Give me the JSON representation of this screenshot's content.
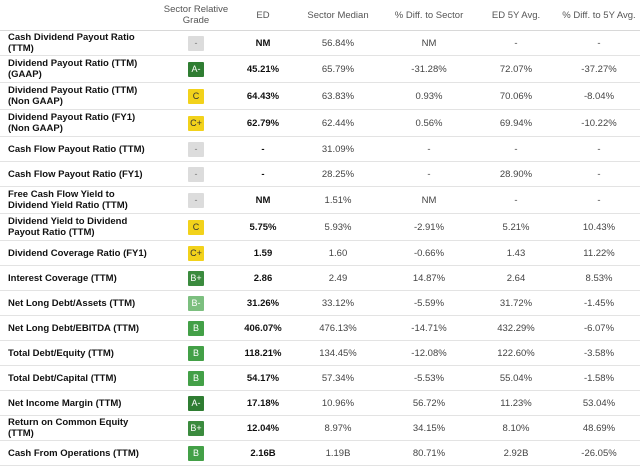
{
  "headers": [
    "",
    "Sector Relative Grade",
    "ED",
    "Sector Median",
    "% Diff. to Sector",
    "ED 5Y Avg.",
    "% Diff. to 5Y Avg."
  ],
  "rows": [
    {
      "metric": "Cash Dividend Payout Ratio (TTM)",
      "grade": "-",
      "ed": "NM",
      "median": "56.84%",
      "diff_sector": "NM",
      "avg5y": "-",
      "diff_5y": "-"
    },
    {
      "metric": "Dividend Payout Ratio (TTM) (GAAP)",
      "grade": "A-",
      "ed": "45.21%",
      "median": "65.79%",
      "diff_sector": "-31.28%",
      "avg5y": "72.07%",
      "diff_5y": "-37.27%"
    },
    {
      "metric": "Dividend Payout Ratio (TTM) (Non GAAP)",
      "grade": "C",
      "ed": "64.43%",
      "median": "63.83%",
      "diff_sector": "0.93%",
      "avg5y": "70.06%",
      "diff_5y": "-8.04%"
    },
    {
      "metric": "Dividend Payout Ratio (FY1) (Non GAAP)",
      "grade": "C+",
      "ed": "62.79%",
      "median": "62.44%",
      "diff_sector": "0.56%",
      "avg5y": "69.94%",
      "diff_5y": "-10.22%"
    },
    {
      "metric": "Cash Flow Payout Ratio (TTM)",
      "grade": "-",
      "ed": "-",
      "median": "31.09%",
      "diff_sector": "-",
      "avg5y": "-",
      "diff_5y": "-"
    },
    {
      "metric": "Cash Flow Payout Ratio (FY1)",
      "grade": "-",
      "ed": "-",
      "median": "28.25%",
      "diff_sector": "-",
      "avg5y": "28.90%",
      "diff_5y": "-"
    },
    {
      "metric": "Free Cash Flow Yield to Dividend Yield Ratio (TTM)",
      "grade": "-",
      "ed": "NM",
      "median": "1.51%",
      "diff_sector": "NM",
      "avg5y": "-",
      "diff_5y": "-"
    },
    {
      "metric": "Dividend Yield to Dividend Payout Ratio (TTM)",
      "grade": "C",
      "ed": "5.75%",
      "median": "5.93%",
      "diff_sector": "-2.91%",
      "avg5y": "5.21%",
      "diff_5y": "10.43%"
    },
    {
      "metric": "Dividend Coverage Ratio (FY1)",
      "grade": "C+",
      "ed": "1.59",
      "median": "1.60",
      "diff_sector": "-0.66%",
      "avg5y": "1.43",
      "diff_5y": "11.22%"
    },
    {
      "metric": "Interest Coverage (TTM)",
      "grade": "B+",
      "ed": "2.86",
      "median": "2.49",
      "diff_sector": "14.87%",
      "avg5y": "2.64",
      "diff_5y": "8.53%"
    },
    {
      "metric": "Net Long Debt/Assets (TTM)",
      "grade": "B-",
      "ed": "31.26%",
      "median": "33.12%",
      "diff_sector": "-5.59%",
      "avg5y": "31.72%",
      "diff_5y": "-1.45%"
    },
    {
      "metric": "Net Long Debt/EBITDA (TTM)",
      "grade": "B",
      "ed": "406.07%",
      "median": "476.13%",
      "diff_sector": "-14.71%",
      "avg5y": "432.29%",
      "diff_5y": "-6.07%"
    },
    {
      "metric": "Total Debt/Equity (TTM)",
      "grade": "B",
      "ed": "118.21%",
      "median": "134.45%",
      "diff_sector": "-12.08%",
      "avg5y": "122.60%",
      "diff_5y": "-3.58%"
    },
    {
      "metric": "Total Debt/Capital (TTM)",
      "grade": "B",
      "ed": "54.17%",
      "median": "57.34%",
      "diff_sector": "-5.53%",
      "avg5y": "55.04%",
      "diff_5y": "-1.58%"
    },
    {
      "metric": "Net Income Margin (TTM)",
      "grade": "A-",
      "ed": "17.18%",
      "median": "10.96%",
      "diff_sector": "56.72%",
      "avg5y": "11.23%",
      "diff_5y": "53.04%"
    },
    {
      "metric": "Return on Common Equity (TTM)",
      "grade": "B+",
      "ed": "12.04%",
      "median": "8.97%",
      "diff_sector": "34.15%",
      "avg5y": "8.10%",
      "diff_5y": "48.69%"
    },
    {
      "metric": "Cash From Operations (TTM)",
      "grade": "B",
      "ed": "2.16B",
      "median": "1.19B",
      "diff_sector": "80.71%",
      "avg5y": "2.92B",
      "diff_5y": "-26.05%"
    }
  ],
  "colors": {
    "grade_A_minus": "#2f7d32",
    "grade_B_plus": "#3b8b3e",
    "grade_B": "#43a047",
    "grade_B_minus": "#7cbf7f",
    "grade_C": "#f2d21b",
    "grade_none": "#dcdcdc"
  }
}
